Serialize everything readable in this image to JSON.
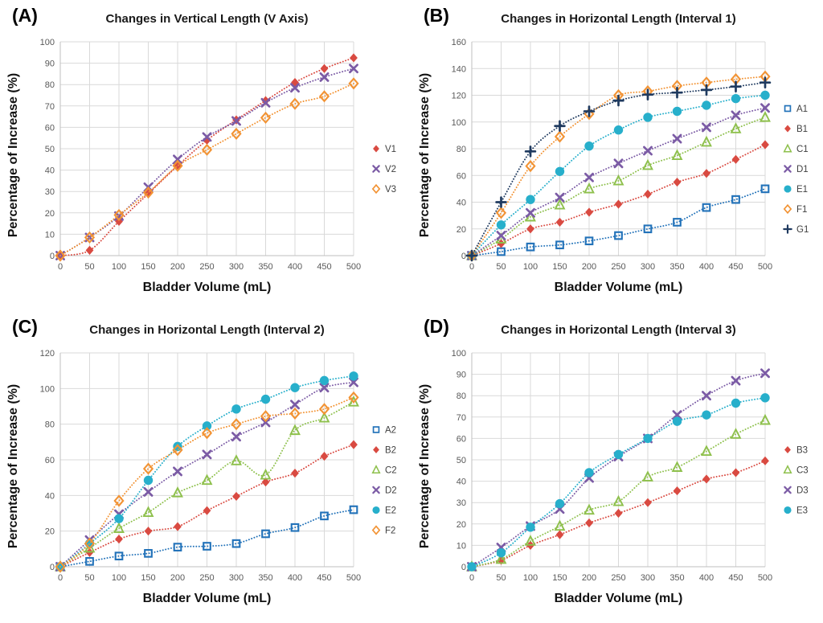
{
  "chart_data": [
    {
      "type": "scatter",
      "panel_label": "(A)",
      "title": "Changes in Vertical Length (V Axis)",
      "xlabel": "Bladder Volume (mL)",
      "ylabel": "Percentage of Increase (%)",
      "x": [
        0,
        50,
        100,
        150,
        200,
        250,
        300,
        350,
        400,
        450,
        500
      ],
      "ylim": [
        0,
        100
      ],
      "ytick_step": 10,
      "grid": true,
      "line_style": "dotted",
      "legend_position": "right",
      "series": [
        {
          "name": "V1",
          "marker": "diamond",
          "color": "#D94A41",
          "values": [
            0,
            2.5,
            16,
            29,
            42,
            54,
            63.5,
            72.5,
            81,
            87.5,
            92.5
          ]
        },
        {
          "name": "V2",
          "marker": "x",
          "color": "#7B5BA5",
          "values": [
            0,
            8.5,
            18.5,
            32,
            45,
            55.5,
            63,
            71.5,
            78.5,
            83.5,
            87.5
          ]
        },
        {
          "name": "V3",
          "marker": "open-diamond",
          "color": "#F29334",
          "values": [
            0,
            8.5,
            19,
            29.5,
            42,
            49.5,
            57,
            64.5,
            71,
            74.5,
            80.5
          ]
        }
      ]
    },
    {
      "type": "scatter",
      "panel_label": "(B)",
      "title": "Changes in Horizontal Length (Interval 1)",
      "xlabel": "Bladder Volume (mL)",
      "ylabel": "Percentage of Increase (%)",
      "x": [
        0,
        50,
        100,
        150,
        200,
        250,
        300,
        350,
        400,
        450,
        500
      ],
      "ylim": [
        0,
        160
      ],
      "ytick_step": 20,
      "grid": true,
      "line_style": "dotted",
      "legend_position": "right",
      "series": [
        {
          "name": "A1",
          "marker": "open-square",
          "color": "#2272B9",
          "values": [
            0,
            3,
            6.5,
            8,
            11,
            15,
            20,
            25,
            36,
            42,
            50
          ]
        },
        {
          "name": "B1",
          "marker": "diamond",
          "color": "#D94A41",
          "values": [
            0,
            9,
            20,
            25,
            32.5,
            38.5,
            46,
            55,
            61.5,
            72,
            83
          ]
        },
        {
          "name": "C1",
          "marker": "open-triangle",
          "color": "#8EC04C",
          "values": [
            0,
            12.5,
            29,
            38,
            50,
            56,
            67.5,
            75,
            85,
            95,
            103.5
          ]
        },
        {
          "name": "D1",
          "marker": "x",
          "color": "#7B5BA5",
          "values": [
            0,
            15,
            32,
            43.5,
            58.5,
            69,
            78.5,
            87.5,
            96,
            105,
            110.5
          ]
        },
        {
          "name": "E1",
          "marker": "circle",
          "color": "#27AFCB",
          "values": [
            0,
            23,
            42,
            63,
            82,
            94,
            103.5,
            108,
            112.5,
            117.5,
            120
          ]
        },
        {
          "name": "F1",
          "marker": "open-diamond",
          "color": "#F29334",
          "values": [
            0,
            32,
            67,
            89,
            106,
            120,
            123,
            127,
            129.5,
            132,
            134
          ]
        },
        {
          "name": "G1",
          "marker": "plus",
          "color": "#1F3A5F",
          "values": [
            0,
            40,
            78,
            97,
            108,
            116,
            120.5,
            122,
            124,
            126.5,
            129.5
          ]
        }
      ]
    },
    {
      "type": "scatter",
      "panel_label": "(C)",
      "title": "Changes in Horizontal Length (Interval 2)",
      "xlabel": "Bladder Volume (mL)",
      "ylabel": "Percentage of Increase (%)",
      "x": [
        0,
        50,
        100,
        150,
        200,
        250,
        300,
        350,
        400,
        450,
        500
      ],
      "ylim": [
        0,
        120
      ],
      "ytick_step": 20,
      "grid": true,
      "line_style": "dotted",
      "legend_position": "right",
      "series": [
        {
          "name": "A2",
          "marker": "open-square",
          "color": "#2272B9",
          "values": [
            0,
            3,
            6,
            7.5,
            11,
            11.5,
            13,
            18.5,
            22,
            28.5,
            32
          ]
        },
        {
          "name": "B2",
          "marker": "diamond",
          "color": "#D94A41",
          "values": [
            0,
            8,
            15.5,
            20,
            22.5,
            31.5,
            39.5,
            47.5,
            52.5,
            62,
            68.5
          ]
        },
        {
          "name": "C2",
          "marker": "open-triangle",
          "color": "#8EC04C",
          "values": [
            0,
            10.5,
            21.5,
            30.5,
            41.5,
            48.5,
            59.5,
            51.5,
            76.5,
            83.5,
            92.5
          ]
        },
        {
          "name": "D2",
          "marker": "x",
          "color": "#7B5BA5",
          "values": [
            0,
            15,
            29.5,
            42,
            53.5,
            63,
            73,
            81,
            91,
            100.5,
            103.5
          ]
        },
        {
          "name": "E2",
          "marker": "circle",
          "color": "#27AFCB",
          "values": [
            0,
            13,
            27,
            48.5,
            67.5,
            79,
            88.5,
            94,
            100.5,
            104.5,
            107
          ]
        },
        {
          "name": "F2",
          "marker": "open-diamond",
          "color": "#F29334",
          "values": [
            0,
            13,
            37,
            55,
            65.5,
            75,
            80,
            84.5,
            86,
            88.5,
            95
          ]
        }
      ]
    },
    {
      "type": "scatter",
      "panel_label": "(D)",
      "title": "Changes in Horizontal Length (Interval 3)",
      "xlabel": "Bladder Volume (mL)",
      "ylabel": "Percentage of Increase (%)",
      "x": [
        0,
        50,
        100,
        150,
        200,
        250,
        300,
        350,
        400,
        450,
        500
      ],
      "ylim": [
        0,
        100
      ],
      "ytick_step": 10,
      "grid": true,
      "line_style": "dotted",
      "legend_position": "right",
      "series": [
        {
          "name": "B3",
          "marker": "diamond",
          "color": "#D94A41",
          "values": [
            0,
            3,
            10,
            15,
            20.5,
            25,
            30,
            35.5,
            41,
            44,
            49.5
          ]
        },
        {
          "name": "C3",
          "marker": "open-triangle",
          "color": "#8EC04C",
          "values": [
            0,
            3.5,
            12,
            19,
            26.5,
            30.5,
            42,
            46.5,
            54,
            62,
            68.5
          ]
        },
        {
          "name": "D3",
          "marker": "x",
          "color": "#7B5BA5",
          "values": [
            0,
            9,
            19,
            27,
            41.5,
            51.5,
            60,
            71,
            80,
            87,
            90.5
          ]
        },
        {
          "name": "E3",
          "marker": "circle",
          "color": "#27AFCB",
          "values": [
            0,
            6.5,
            18.5,
            29.5,
            44,
            52.5,
            60,
            68,
            71,
            76.5,
            79
          ]
        }
      ]
    }
  ],
  "style": {
    "grid_color": "#D9D9D9",
    "axis_color": "#BFBFBF",
    "tick_color": "#595959",
    "title_color": "#1a1a1a",
    "legend_text_color": "#404040",
    "background": "#ffffff"
  }
}
